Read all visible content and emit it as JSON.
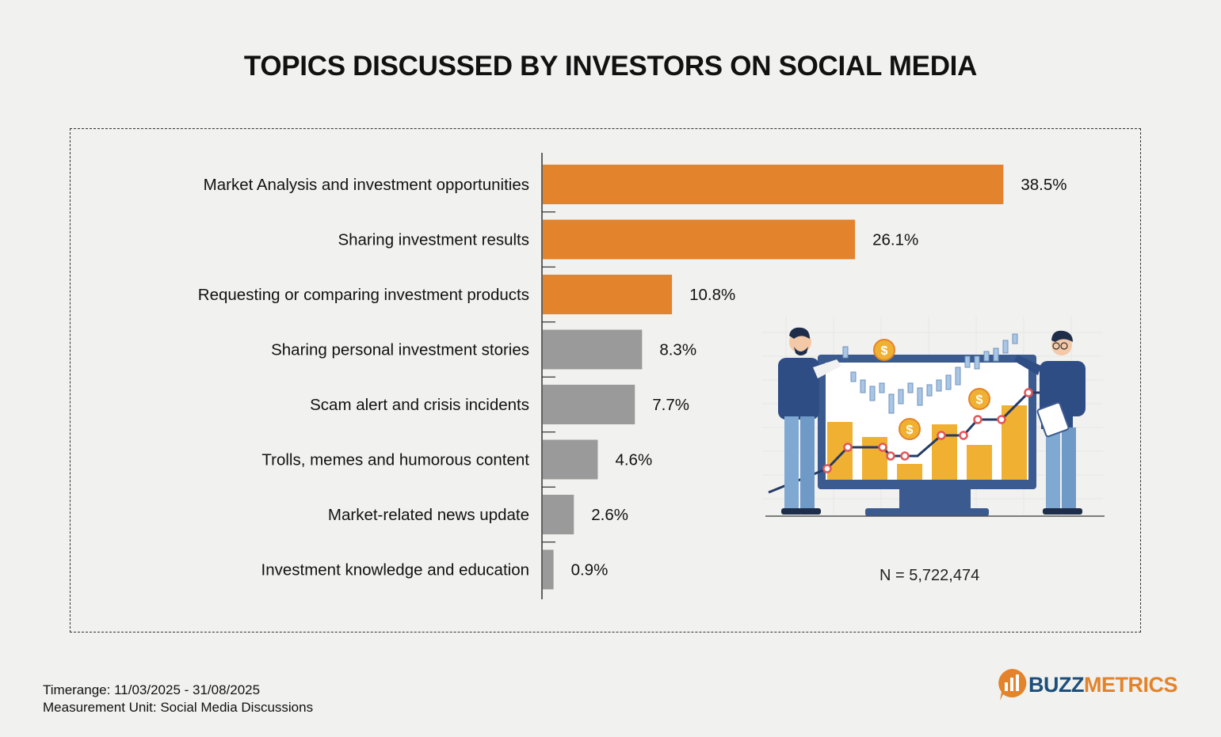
{
  "title": "TOPICS DISCUSSED BY INVESTORS ON SOCIAL MEDIA",
  "colors": {
    "highlight": "#e3832b",
    "neutral": "#9a9a9a",
    "background": "#f1f1ef",
    "brand_blue": "#1d4f7a",
    "brand_orange": "#e3832b"
  },
  "chart_data": {
    "type": "bar",
    "orientation": "horizontal",
    "title": "TOPICS DISCUSSED BY INVESTORS ON SOCIAL MEDIA",
    "categories": [
      "Market Analysis and investment opportunities",
      "Sharing investment results",
      "Requesting or comparing investment products",
      "Sharing personal investment stories",
      "Scam alert and crisis incidents",
      "Trolls, memes and humorous content",
      "Market-related news update",
      "Investment knowledge and education"
    ],
    "values": [
      38.5,
      26.1,
      10.8,
      8.3,
      7.7,
      4.6,
      2.6,
      0.9
    ],
    "labels": [
      "38.5%",
      "26.1%",
      "10.8%",
      "8.3%",
      "7.7%",
      "4.6%",
      "2.6%",
      "0.9%"
    ],
    "highlighted": [
      true,
      true,
      true,
      false,
      false,
      false,
      false,
      false
    ],
    "unit": "%",
    "xlim": [
      0,
      40
    ],
    "grid": false,
    "xlabel": "",
    "ylabel": ""
  },
  "sample_note": "N = 5,722,474",
  "footer": {
    "timerange": "Timerange: 11/03/2025 - 31/08/2025",
    "unit": "Measurement Unit: Social Media Discussions"
  },
  "logo": {
    "part1": "BUZZ",
    "part2": "METRICS",
    "icon": "bar-chart-bubble-icon"
  },
  "illustration": {
    "icon": "investors-analyzing-chart-illustration"
  }
}
